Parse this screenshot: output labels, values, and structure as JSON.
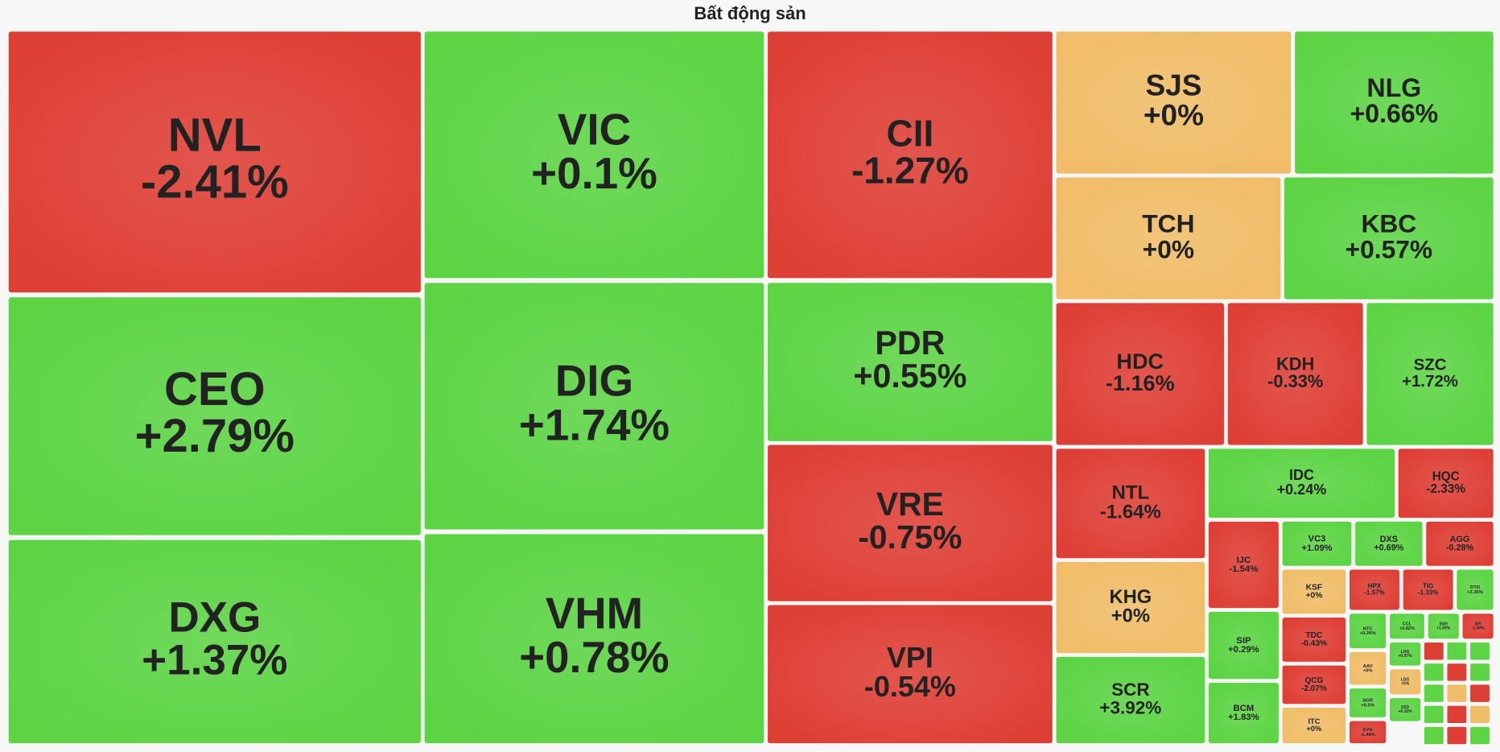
{
  "chart_data": {
    "type": "treemap",
    "title": "Bất động sản",
    "categories": [
      "NVL",
      "CEO",
      "DXG",
      "VIC",
      "DIG",
      "VHM",
      "CII",
      "PDR",
      "VRE",
      "VPI",
      "SJS",
      "NLG",
      "TCH",
      "KBC",
      "HDC",
      "KDH",
      "SZC",
      "NTL",
      "KHG",
      "SCR",
      "IDC",
      "HQC",
      "IJC",
      "SIP",
      "BCM",
      "VC3",
      "DXS",
      "AGG",
      "KSF",
      "TDC",
      "QCG",
      "ITC",
      "HPX",
      "TIG",
      "DTD",
      "NTC",
      "CCL",
      "SSH",
      "API",
      "LHG",
      "AAV",
      "LDG",
      "SGR",
      "D2D",
      "EVG"
    ],
    "values": [
      -2.41,
      2.79,
      1.37,
      0.1,
      1.74,
      0.78,
      -1.27,
      0.55,
      -0.75,
      -0.54,
      0,
      0.66,
      0,
      0.57,
      -1.16,
      -0.33,
      1.72,
      -1.64,
      0,
      3.92,
      0.24,
      -2.33,
      -1.54,
      0.29,
      1.83,
      1.09,
      0.69,
      -0.28,
      0,
      -0.43,
      -2.07,
      0,
      -1.57,
      -1.33,
      2.35,
      0.26,
      0.82,
      1.69,
      -1.39,
      0.97,
      0,
      0,
      0.5,
      0.15,
      -1.49
    ],
    "value_labels": [
      "-2.41%",
      "+2.79%",
      "+1.37%",
      "+0.1%",
      "+1.74%",
      "+0.78%",
      "-1.27%",
      "+0.55%",
      "-0.75%",
      "-0.54%",
      "+0%",
      "+0.66%",
      "+0%",
      "+0.57%",
      "-1.16%",
      "-0.33%",
      "+1.72%",
      "-1.64%",
      "+0%",
      "+3.92%",
      "+0.24%",
      "-2.33%",
      "-1.54%",
      "+0.29%",
      "+1.83%",
      "+1.09%",
      "+0.69%",
      "-0.28%",
      "+0%",
      "-0.43%",
      "-2.07%",
      "+0%",
      "-1.57%",
      "-1.33%",
      "+2.35%",
      "+0.26%",
      "+0.82%",
      "+1.69%",
      "-1.39%",
      "+0.97%",
      "+0%",
      "+0%",
      "+0.5%",
      "+0.15%",
      "-1.49%"
    ],
    "colors": {
      "negative": "#de3f35",
      "zero": "#f0bd68",
      "positive": "#5cd444"
    }
  }
}
